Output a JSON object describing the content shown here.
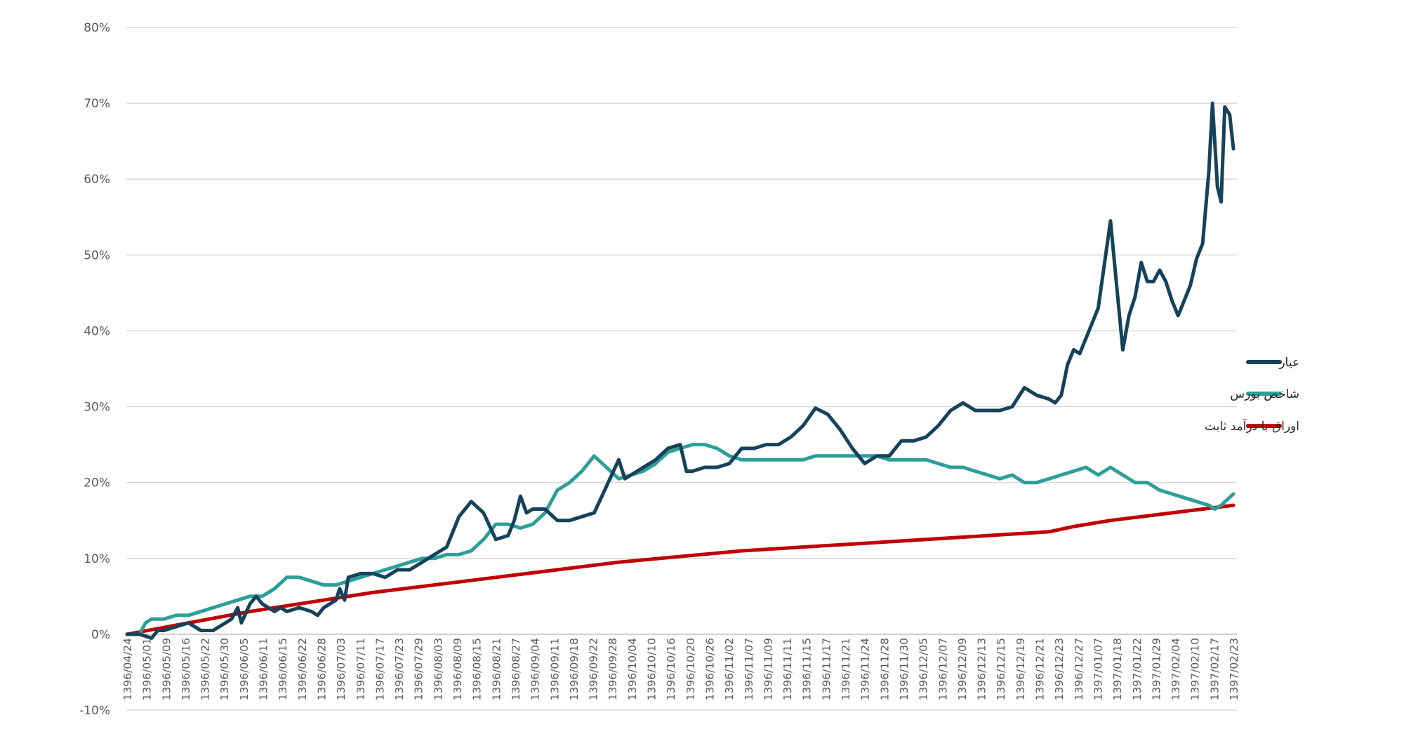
{
  "chart_data": {
    "type": "line",
    "title": "",
    "xlabel": "",
    "ylabel": "",
    "y_unit": "%",
    "ylim": [
      -10,
      80
    ],
    "yticks": [
      -10,
      0,
      10,
      20,
      30,
      40,
      50,
      60,
      70,
      80
    ],
    "ytick_labels": [
      "-10%",
      "0%",
      "10%",
      "20%",
      "30%",
      "40%",
      "50%",
      "60%",
      "70%",
      "80%"
    ],
    "grid": "horizontal",
    "legend_position": "right",
    "x_tick_labels": [
      "1396/04/24",
      "1396/05/01",
      "1396/05/09",
      "1396/05/16",
      "1396/05/22",
      "1396/05/30",
      "1396/06/05",
      "1396/06/11",
      "1396/06/15",
      "1396/06/22",
      "1396/06/28",
      "1396/07/03",
      "1396/07/11",
      "1396/07/17",
      "1396/07/23",
      "1396/07/29",
      "1396/08/03",
      "1396/08/09",
      "1396/08/15",
      "1396/08/21",
      "1396/08/27",
      "1396/09/04",
      "1396/09/11",
      "1396/09/18",
      "1396/09/22",
      "1396/09/28",
      "1396/10/04",
      "1396/10/10",
      "1396/10/16",
      "1396/10/20",
      "1396/10/26",
      "1396/11/02",
      "1396/11/07",
      "1396/11/09",
      "1396/11/11",
      "1396/11/15",
      "1396/11/17",
      "1396/11/21",
      "1396/11/24",
      "1396/11/28",
      "1396/11/30",
      "1396/12/05",
      "1396/12/07",
      "1396/12/09",
      "1396/12/13",
      "1396/12/15",
      "1396/12/19",
      "1396/12/21",
      "1396/12/23",
      "1396/12/27",
      "1397/01/07",
      "1397/01/18",
      "1397/01/22",
      "1397/01/29",
      "1397/02/04",
      "1397/02/10",
      "1397/02/17",
      "1397/02/23"
    ],
    "series": [
      {
        "name": "عیار",
        "color": "#16425B",
        "points": [
          [
            0,
            0.0
          ],
          [
            1,
            0.0
          ],
          [
            2,
            -0.5
          ],
          [
            2.5,
            0.5
          ],
          [
            3,
            0.5
          ],
          [
            4,
            1.0
          ],
          [
            5,
            1.5
          ],
          [
            6,
            0.5
          ],
          [
            7,
            0.5
          ],
          [
            7.5,
            1.0
          ],
          [
            8,
            1.5
          ],
          [
            8.5,
            2.0
          ],
          [
            9,
            3.5
          ],
          [
            9.3,
            1.5
          ],
          [
            10,
            4.0
          ],
          [
            10.5,
            5.0
          ],
          [
            11,
            4.0
          ],
          [
            12,
            3.0
          ],
          [
            12.5,
            3.5
          ],
          [
            13,
            3.0
          ],
          [
            14,
            3.5
          ],
          [
            15,
            3.0
          ],
          [
            15.5,
            2.5
          ],
          [
            16,
            3.5
          ],
          [
            17,
            4.5
          ],
          [
            17.3,
            6.0
          ],
          [
            17.7,
            4.5
          ],
          [
            18,
            7.5
          ],
          [
            19,
            8.0
          ],
          [
            20,
            8.0
          ],
          [
            21,
            7.5
          ],
          [
            22,
            8.5
          ],
          [
            23,
            8.5
          ],
          [
            24,
            9.5
          ],
          [
            25,
            10.5
          ],
          [
            26,
            11.5
          ],
          [
            27,
            15.5
          ],
          [
            28,
            17.5
          ],
          [
            29,
            16.0
          ],
          [
            30,
            12.5
          ],
          [
            31,
            13.0
          ],
          [
            31.5,
            15.0
          ],
          [
            32,
            18.2
          ],
          [
            32.5,
            16.0
          ],
          [
            33,
            16.5
          ],
          [
            34,
            16.5
          ],
          [
            35,
            15.0
          ],
          [
            36,
            15.0
          ],
          [
            37,
            15.5
          ],
          [
            38,
            16.0
          ],
          [
            39,
            19.5
          ],
          [
            40,
            23.0
          ],
          [
            40.5,
            20.5
          ],
          [
            41,
            21.0
          ],
          [
            42,
            22.0
          ],
          [
            43,
            23.0
          ],
          [
            44,
            24.5
          ],
          [
            45,
            25.0
          ],
          [
            45.5,
            21.5
          ],
          [
            46,
            21.5
          ],
          [
            47,
            22.0
          ],
          [
            48,
            22.0
          ],
          [
            49,
            22.5
          ],
          [
            50,
            24.5
          ],
          [
            51,
            24.5
          ],
          [
            52,
            25.0
          ],
          [
            53,
            25.0
          ],
          [
            54,
            26.0
          ],
          [
            55,
            27.5
          ],
          [
            56,
            29.8
          ],
          [
            57,
            29.0
          ],
          [
            58,
            27.0
          ],
          [
            59,
            24.5
          ],
          [
            60,
            22.5
          ],
          [
            61,
            23.5
          ],
          [
            62,
            23.5
          ],
          [
            63,
            25.5
          ],
          [
            64,
            25.5
          ],
          [
            65,
            26.0
          ],
          [
            66,
            27.5
          ],
          [
            67,
            29.5
          ],
          [
            68,
            30.5
          ],
          [
            69,
            29.5
          ],
          [
            70,
            29.5
          ],
          [
            71,
            29.5
          ],
          [
            72,
            30.0
          ],
          [
            73,
            32.5
          ],
          [
            74,
            31.5
          ],
          [
            75,
            31.0
          ],
          [
            75.5,
            30.5
          ],
          [
            76,
            31.5
          ],
          [
            76.5,
            35.5
          ],
          [
            77,
            37.5
          ],
          [
            77.5,
            37.0
          ],
          [
            78,
            39.0
          ],
          [
            79,
            43.0
          ],
          [
            80,
            54.5
          ],
          [
            81,
            37.5
          ],
          [
            81.5,
            42.0
          ],
          [
            82,
            44.5
          ],
          [
            82.5,
            49.0
          ],
          [
            83,
            46.5
          ],
          [
            83.5,
            46.5
          ],
          [
            84,
            48.0
          ],
          [
            84.5,
            46.5
          ],
          [
            85,
            44.0
          ],
          [
            85.5,
            42.0
          ],
          [
            86,
            44.0
          ],
          [
            86.5,
            46.0
          ],
          [
            87,
            49.5
          ],
          [
            87.5,
            51.5
          ],
          [
            88,
            61.0
          ],
          [
            88.3,
            70.0
          ],
          [
            88.7,
            59.0
          ],
          [
            89,
            57.0
          ],
          [
            89.3,
            69.5
          ],
          [
            89.7,
            68.5
          ],
          [
            90,
            64.0
          ]
        ]
      },
      {
        "name": "شاخص بورس",
        "color": "#2E9E98",
        "points": [
          [
            0,
            0.0
          ],
          [
            1,
            0.0
          ],
          [
            1.5,
            1.5
          ],
          [
            2,
            2.0
          ],
          [
            3,
            2.0
          ],
          [
            4,
            2.5
          ],
          [
            5,
            2.5
          ],
          [
            6,
            3.0
          ],
          [
            7,
            3.5
          ],
          [
            8,
            4.0
          ],
          [
            9,
            4.5
          ],
          [
            10,
            5.0
          ],
          [
            11,
            5.0
          ],
          [
            12,
            6.0
          ],
          [
            13,
            7.5
          ],
          [
            14,
            7.5
          ],
          [
            15,
            7.0
          ],
          [
            16,
            6.5
          ],
          [
            17,
            6.5
          ],
          [
            18,
            7.0
          ],
          [
            19,
            7.5
          ],
          [
            20,
            8.0
          ],
          [
            21,
            8.5
          ],
          [
            22,
            9.0
          ],
          [
            23,
            9.5
          ],
          [
            24,
            10.0
          ],
          [
            25,
            10.0
          ],
          [
            26,
            10.5
          ],
          [
            27,
            10.5
          ],
          [
            28,
            11.0
          ],
          [
            29,
            12.5
          ],
          [
            30,
            14.5
          ],
          [
            31,
            14.5
          ],
          [
            32,
            14.0
          ],
          [
            33,
            14.5
          ],
          [
            34,
            16.0
          ],
          [
            35,
            19.0
          ],
          [
            36,
            20.0
          ],
          [
            37,
            21.5
          ],
          [
            38,
            23.5
          ],
          [
            39,
            22.0
          ],
          [
            40,
            20.5
          ],
          [
            41,
            21.0
          ],
          [
            42,
            21.5
          ],
          [
            43,
            22.5
          ],
          [
            44,
            24.0
          ],
          [
            45,
            24.5
          ],
          [
            46,
            25.0
          ],
          [
            47,
            25.0
          ],
          [
            48,
            24.5
          ],
          [
            49,
            23.5
          ],
          [
            50,
            23.0
          ],
          [
            51,
            23.0
          ],
          [
            52,
            23.0
          ],
          [
            53,
            23.0
          ],
          [
            54,
            23.0
          ],
          [
            55,
            23.0
          ],
          [
            56,
            23.5
          ],
          [
            57,
            23.5
          ],
          [
            58,
            23.5
          ],
          [
            59,
            23.5
          ],
          [
            60,
            23.5
          ],
          [
            61,
            23.5
          ],
          [
            62,
            23.0
          ],
          [
            63,
            23.0
          ],
          [
            64,
            23.0
          ],
          [
            65,
            23.0
          ],
          [
            66,
            22.5
          ],
          [
            67,
            22.0
          ],
          [
            68,
            22.0
          ],
          [
            69,
            21.5
          ],
          [
            70,
            21.0
          ],
          [
            71,
            20.5
          ],
          [
            72,
            21.0
          ],
          [
            73,
            20.0
          ],
          [
            74,
            20.0
          ],
          [
            75,
            20.5
          ],
          [
            76,
            21.0
          ],
          [
            77,
            21.5
          ],
          [
            78,
            22.0
          ],
          [
            79,
            21.0
          ],
          [
            80,
            22.0
          ],
          [
            81,
            21.0
          ],
          [
            82,
            20.0
          ],
          [
            83,
            20.0
          ],
          [
            84,
            19.0
          ],
          [
            85,
            18.5
          ],
          [
            86,
            18.0
          ],
          [
            87,
            17.5
          ],
          [
            88,
            17.0
          ],
          [
            88.5,
            16.5
          ],
          [
            89,
            17.0
          ],
          [
            90,
            18.5
          ]
        ]
      },
      {
        "name": "اوراق با درآمد ثابت",
        "color": "#C00000",
        "points": [
          [
            0,
            0.0
          ],
          [
            10,
            3.0
          ],
          [
            20,
            5.5
          ],
          [
            30,
            7.5
          ],
          [
            40,
            9.5
          ],
          [
            50,
            11.0
          ],
          [
            60,
            12.0
          ],
          [
            70,
            13.0
          ],
          [
            75,
            13.5
          ],
          [
            77,
            14.2
          ],
          [
            80,
            15.0
          ],
          [
            85,
            16.0
          ],
          [
            90,
            17.0
          ]
        ]
      }
    ]
  }
}
